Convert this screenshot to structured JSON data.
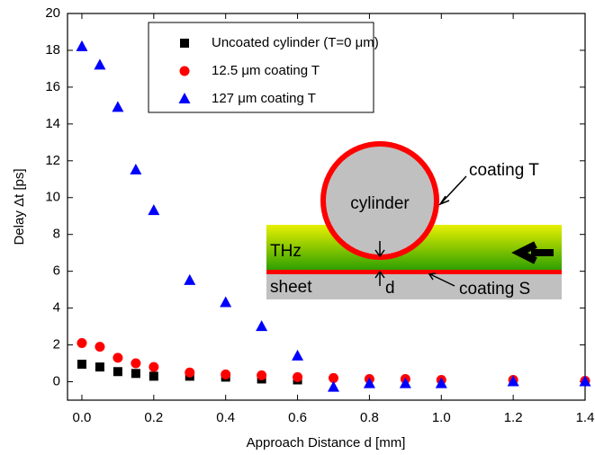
{
  "chart_data": {
    "type": "scatter",
    "x_label": "Approach Distance d [mm]",
    "y_label": "Delay Δt [ps]",
    "xlim": [
      -0.04,
      1.4
    ],
    "ylim": [
      -1,
      20
    ],
    "xticks": [
      {
        "value": 0,
        "label": "0.0"
      },
      {
        "value": 0.2,
        "label": "0.2"
      },
      {
        "value": 0.4,
        "label": "0.4"
      },
      {
        "value": 0.6,
        "label": "0.6"
      },
      {
        "value": 0.8,
        "label": "0.8"
      },
      {
        "value": 1,
        "label": "1.0"
      },
      {
        "value": 1.2,
        "label": "1.2"
      },
      {
        "value": 1.4,
        "label": "1.4"
      }
    ],
    "yticks": [
      0,
      2,
      4,
      6,
      8,
      10,
      12,
      14,
      16,
      18,
      20
    ],
    "series": [
      {
        "name": "Uncoated cylinder (T=0 μm)",
        "color": "#000000",
        "marker": "square",
        "x": [
          0,
          0.05,
          0.1,
          0.15,
          0.2,
          0.3,
          0.4,
          0.5,
          0.6
        ],
        "values": [
          0.95,
          0.8,
          0.55,
          0.45,
          0.3,
          0.3,
          0.25,
          0.15,
          0.1
        ]
      },
      {
        "name": "12.5 μm coating T",
        "color": "#ff0000",
        "marker": "circle",
        "x": [
          0,
          0.05,
          0.1,
          0.15,
          0.2,
          0.3,
          0.4,
          0.5,
          0.6,
          0.7,
          0.8,
          0.9,
          1,
          1.2,
          1.4
        ],
        "values": [
          2.1,
          1.9,
          1.3,
          1.0,
          0.8,
          0.5,
          0.4,
          0.35,
          0.25,
          0.2,
          0.15,
          0.15,
          0.1,
          0.1,
          0.05
        ]
      },
      {
        "name": "127 μm coating T",
        "color": "#0000ff",
        "marker": "triangle",
        "x": [
          0,
          0.05,
          0.1,
          0.15,
          0.2,
          0.3,
          0.4,
          0.5,
          0.6,
          0.7,
          0.8,
          0.9,
          1,
          1.2,
          1.4
        ],
        "values": [
          18.2,
          17.2,
          14.9,
          11.5,
          9.3,
          5.5,
          4.3,
          3.0,
          1.4,
          -0.3,
          -0.1,
          -0.1,
          -0.1,
          0,
          0
        ]
      }
    ],
    "annotations": [
      "cylinder",
      "coating T",
      "THz",
      "sheet",
      "d",
      "coating S"
    ]
  }
}
